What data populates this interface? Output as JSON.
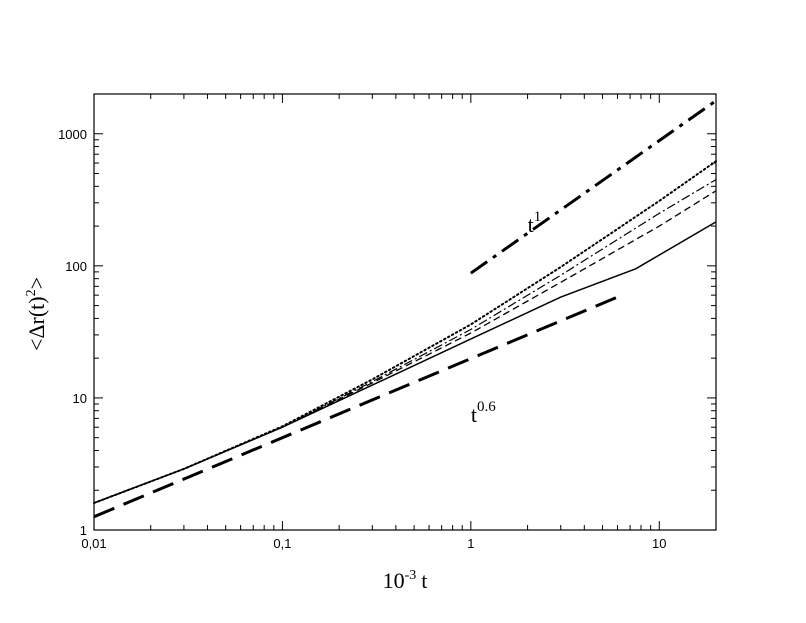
{
  "chart_data": {
    "type": "line",
    "title": "",
    "xlabel": {
      "base": "10",
      "exponent": "-3",
      "rest": "t"
    },
    "ylabel": {
      "lead": "<Δr(t)",
      "exponent": "2",
      "tail": ">"
    },
    "x_scale": "log",
    "y_scale": "log",
    "xlim": [
      0.01,
      20
    ],
    "ylim": [
      1,
      2000
    ],
    "grid": false,
    "x_ticks": [
      {
        "value": 0.01,
        "label": "0,01"
      },
      {
        "value": 0.1,
        "label": "0,1"
      },
      {
        "value": 1,
        "label": "1"
      },
      {
        "value": 10,
        "label": "10"
      }
    ],
    "y_ticks": [
      {
        "value": 1,
        "label": "1"
      },
      {
        "value": 10,
        "label": "10"
      },
      {
        "value": 100,
        "label": "100"
      },
      {
        "value": 1000,
        "label": "1000"
      }
    ],
    "series": [
      {
        "style": "solid",
        "x": [
          0.01,
          0.03,
          0.1,
          0.3,
          1,
          3,
          7.5,
          20
        ],
        "y": [
          1.6,
          2.9,
          6.0,
          12.5,
          28,
          58,
          95,
          215
        ]
      },
      {
        "style": "dashed",
        "x": [
          0.01,
          0.03,
          0.1,
          0.3,
          1,
          3,
          10,
          20
        ],
        "y": [
          1.6,
          2.9,
          6.0,
          13.0,
          31,
          75,
          200,
          370
        ]
      },
      {
        "style": "dashdot",
        "x": [
          0.01,
          0.03,
          0.1,
          0.3,
          1,
          3,
          10,
          20
        ],
        "y": [
          1.6,
          2.9,
          6.0,
          13.3,
          33,
          85,
          250,
          450
        ]
      },
      {
        "style": "dotted",
        "x": [
          0.01,
          0.03,
          0.1,
          0.3,
          1,
          3,
          10,
          20
        ],
        "y": [
          1.6,
          2.9,
          6.1,
          13.8,
          36,
          98,
          310,
          620
        ]
      }
    ],
    "reference_lines": [
      {
        "style": "long-dashed",
        "x": [
          0.01,
          6
        ],
        "y": [
          1.26,
          58
        ],
        "label_base": "t",
        "label_exponent": "0.6"
      },
      {
        "style": "dashdot-thick",
        "x": [
          1,
          20
        ],
        "y": [
          88,
          1780
        ],
        "label_base": "t",
        "label_exponent": "1"
      }
    ],
    "annotations": [
      {
        "text_base": "t",
        "text_exponent": "1",
        "x": 2.0,
        "y": 180
      },
      {
        "text_base": "t",
        "text_exponent": "0.6",
        "x": 1.0,
        "y": 6.6
      }
    ]
  }
}
